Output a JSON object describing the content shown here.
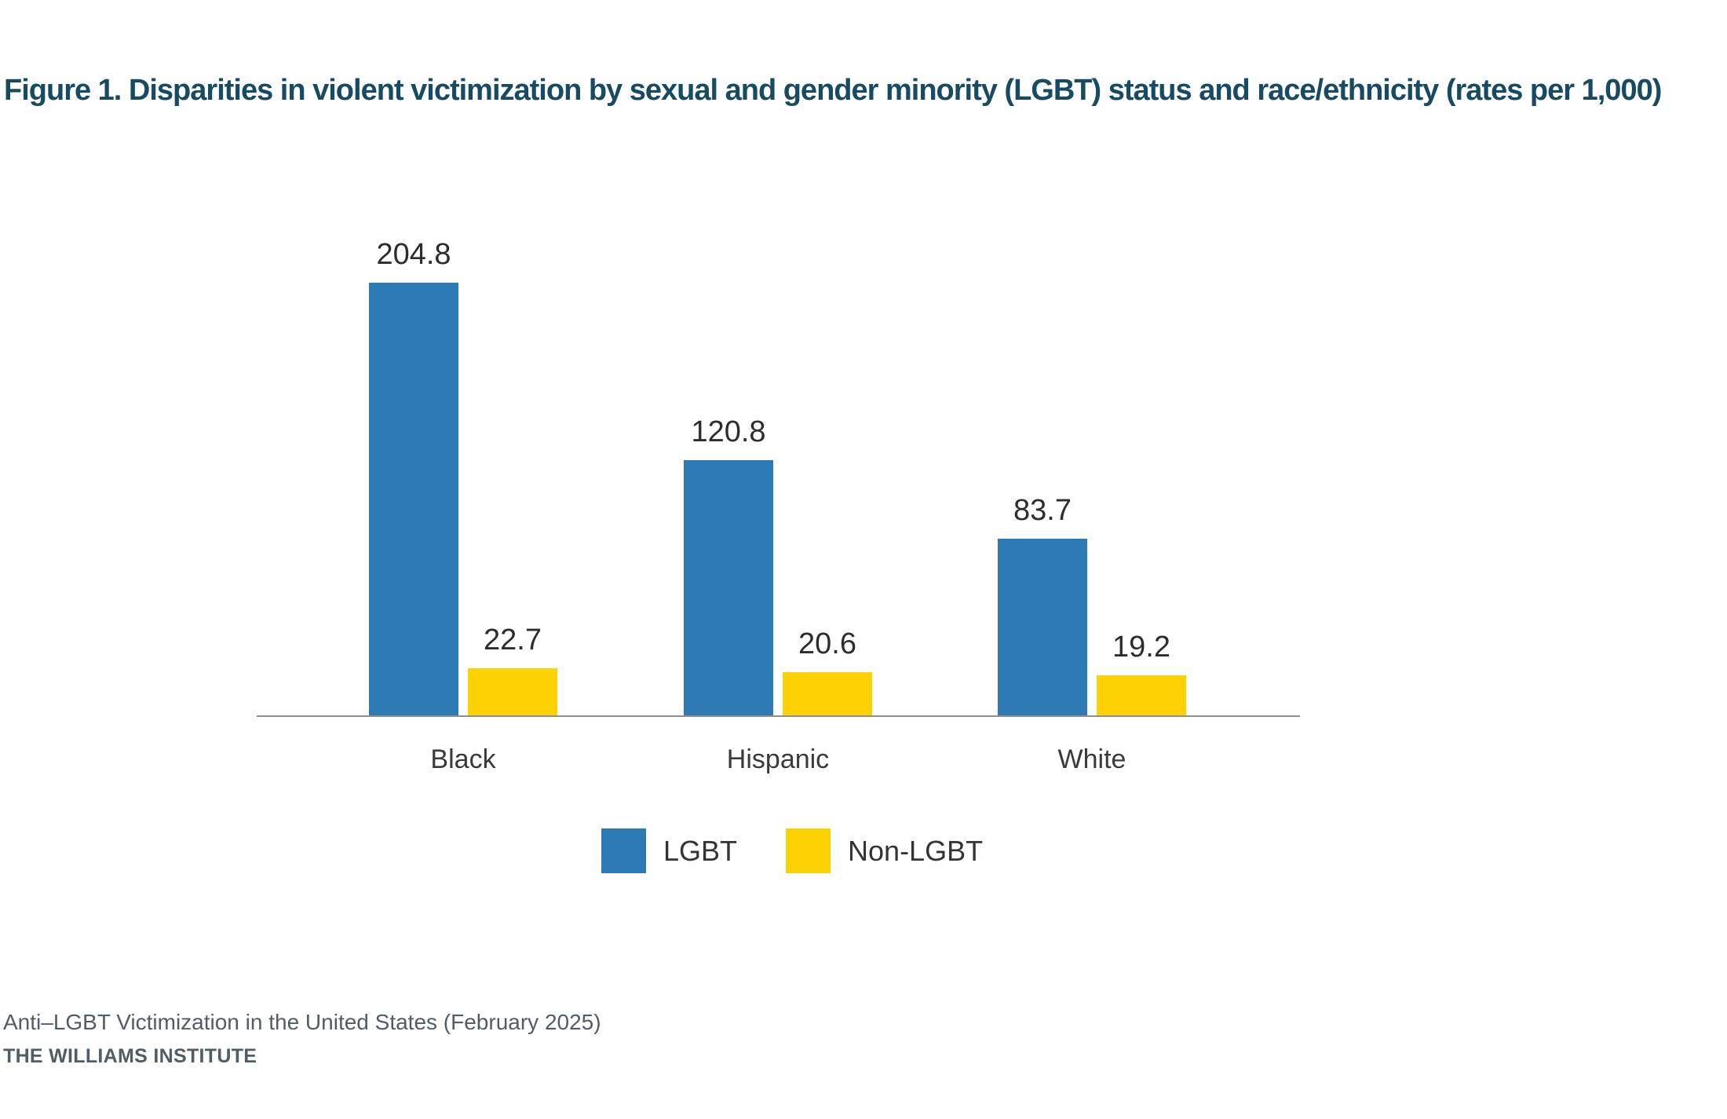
{
  "title": "Figure 1. Disparities in violent victimization by sexual and gender minority (LGBT) status and race/ethnicity (rates per 1,000)",
  "chart_data": {
    "type": "bar",
    "title": "Figure 1. Disparities in violent victimization by sexual and gender minority (LGBT) status and race/ethnicity (rates per 1,000)",
    "categories": [
      "Black",
      "Hispanic",
      "White"
    ],
    "series": [
      {
        "name": "LGBT",
        "color": "#2C79B4",
        "values": [
          204.8,
          120.8,
          83.7
        ]
      },
      {
        "name": "Non-LGBT",
        "color": "#FDD205",
        "values": [
          22.7,
          20.6,
          19.2
        ]
      }
    ],
    "xlabel": "",
    "ylabel": "",
    "ylim": [
      0,
      220
    ],
    "grid": false,
    "y_axis_visible": false,
    "value_labels_shown": true,
    "legend_position": "bottom"
  },
  "legend": {
    "items": [
      {
        "label": "LGBT",
        "color": "#2C79B4"
      },
      {
        "label": "Non-LGBT",
        "color": "#FDD205"
      }
    ]
  },
  "footer": {
    "source_line": "Anti–LGBT Victimization in the United States (February 2025)",
    "org_line": "THE WILLIAMS INSTITUTE"
  },
  "colors": {
    "title_navy": "#174A63",
    "lgbt_blue": "#2C79B4",
    "non_lgbt_yellow": "#FDD205",
    "value_label": "#2D2D2D",
    "category_label": "#3A3A3A",
    "footer_gray": "#525C66",
    "axis_line": "#8E8E8E",
    "background": "#FFFFFF"
  }
}
